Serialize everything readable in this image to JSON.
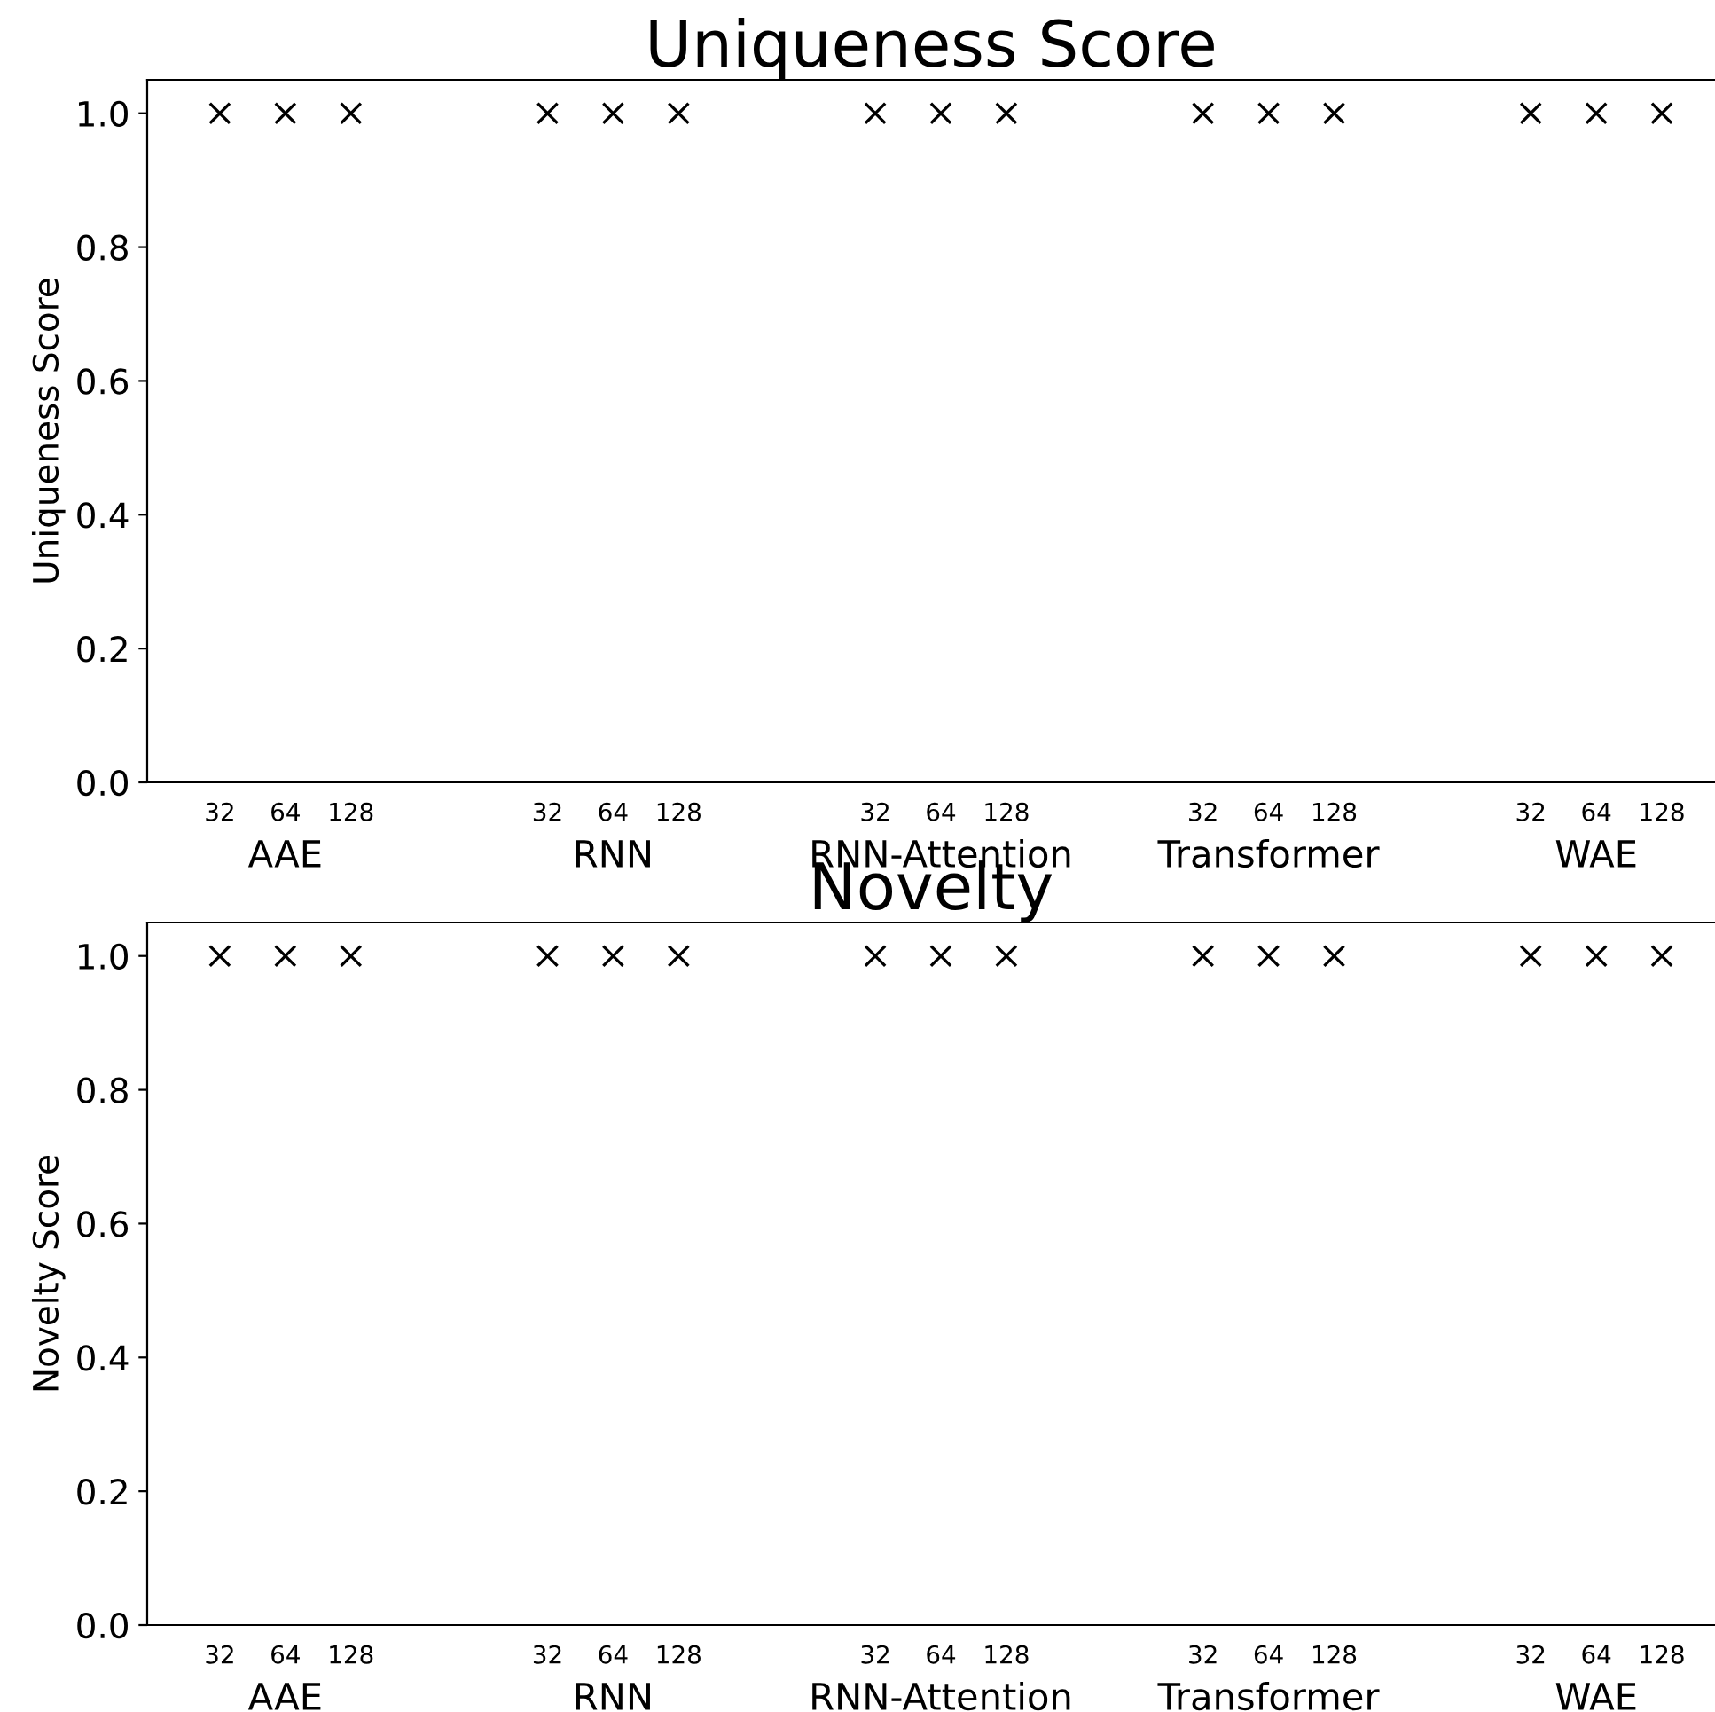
{
  "chart_data": [
    {
      "type": "scatter",
      "title": "Uniqueness Score",
      "ylabel": "Uniqueness Score",
      "categories": [
        "32",
        "64",
        "128",
        null,
        null,
        "32",
        "64",
        "128",
        null,
        null,
        "32",
        "64",
        "128",
        null,
        null,
        "32",
        "64",
        "128",
        null,
        null,
        "32",
        "64",
        "128"
      ],
      "series": [
        {
          "color": "#000000",
          "values": [
            1.0,
            1.0,
            1.0,
            null,
            null,
            1.0,
            1.0,
            1.0,
            null,
            null,
            1.0,
            1.0,
            1.0,
            null,
            null,
            1.0,
            1.0,
            1.0,
            null,
            null,
            1.0,
            1.0,
            1.0
          ]
        }
      ],
      "annotations": [
        "AAE",
        "RNN",
        "RNN-Attention",
        "Transformer",
        "WAE"
      ],
      "ylim": [
        0,
        1.05
      ],
      "yticks": [
        {
          "value": 0,
          "label": "0.0"
        },
        {
          "value": 0.2,
          "label": "0.2"
        },
        {
          "value": 0.4,
          "label": "0.4"
        },
        {
          "value": 0.6,
          "label": "0.6"
        },
        {
          "value": 0.8,
          "label": "0.8"
        },
        {
          "value": 1,
          "label": "1.0"
        }
      ],
      "marker": "cross",
      "grid": false,
      "legend": false
    },
    {
      "type": "scatter",
      "title": "Novelty",
      "ylabel": "Novelty Score",
      "categories": [
        "32",
        "64",
        "128",
        null,
        null,
        "32",
        "64",
        "128",
        null,
        null,
        "32",
        "64",
        "128",
        null,
        null,
        "32",
        "64",
        "128",
        null,
        null,
        "32",
        "64",
        "128"
      ],
      "series": [
        {
          "color": "#000000",
          "values": [
            1.0,
            1.0,
            1.0,
            null,
            null,
            1.0,
            1.0,
            1.0,
            null,
            null,
            1.0,
            1.0,
            1.0,
            null,
            null,
            1.0,
            1.0,
            1.0,
            null,
            null,
            1.0,
            1.0,
            1.0
          ]
        }
      ],
      "annotations": [
        "AAE",
        "RNN",
        "RNN-Attention",
        "Transformer",
        "WAE"
      ],
      "ylim": [
        0,
        1.05
      ],
      "yticks": [
        {
          "value": 0,
          "label": "0.0"
        },
        {
          "value": 0.2,
          "label": "0.2"
        },
        {
          "value": 0.4,
          "label": "0.4"
        },
        {
          "value": 0.6,
          "label": "0.6"
        },
        {
          "value": 0.8,
          "label": "0.8"
        },
        {
          "value": 1,
          "label": "1.0"
        }
      ],
      "marker": "cross",
      "grid": false,
      "legend": false
    }
  ]
}
